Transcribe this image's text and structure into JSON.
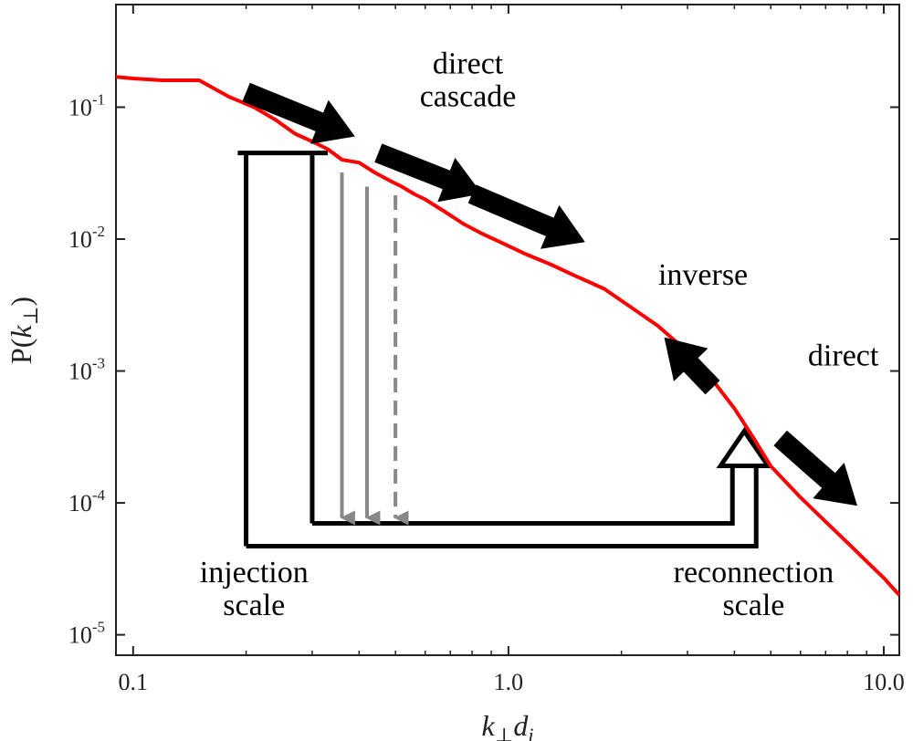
{
  "chart_data": {
    "type": "line",
    "xscale": "log",
    "yscale": "log",
    "xlim": [
      0.09,
      11
    ],
    "ylim": [
      7e-06,
      0.6
    ],
    "xticks": [
      {
        "value": 0.1,
        "label": "0.1"
      },
      {
        "value": 1.0,
        "label": "1.0"
      },
      {
        "value": 10.0,
        "label": "10.0"
      }
    ],
    "yticks": [
      {
        "value": 0.1,
        "base": "10",
        "exp": "-1"
      },
      {
        "value": 0.01,
        "base": "10",
        "exp": "-2"
      },
      {
        "value": 0.001,
        "base": "10",
        "exp": "-3"
      },
      {
        "value": 0.0001,
        "base": "10",
        "exp": "-4"
      },
      {
        "value": 1e-05,
        "base": "10",
        "exp": "-5"
      }
    ],
    "xlabel": {
      "k": "k",
      "perp": "⊥",
      "d": "d",
      "i": "i"
    },
    "ylabel": {
      "prefix": "P(",
      "k": "k",
      "perp": "⊥",
      "suffix": ")"
    },
    "series": [
      {
        "color": "#ff0000",
        "x": [
          0.09,
          0.1,
          0.12,
          0.15,
          0.18,
          0.21,
          0.24,
          0.27,
          0.3,
          0.33,
          0.36,
          0.4,
          0.44,
          0.48,
          0.52,
          0.56,
          0.6,
          0.68,
          0.76,
          0.85,
          0.95,
          1.1,
          1.3,
          1.5,
          1.8,
          2.1,
          2.5,
          3.0,
          3.5,
          4.0,
          4.5,
          5.0,
          6.0,
          7.0,
          8.0,
          9.0,
          10.0,
          11.0
        ],
        "y": [
          0.17,
          0.165,
          0.16,
          0.16,
          0.12,
          0.1,
          0.08,
          0.063,
          0.055,
          0.048,
          0.04,
          0.038,
          0.032,
          0.028,
          0.025,
          0.022,
          0.02,
          0.016,
          0.013,
          0.011,
          0.0095,
          0.0078,
          0.0064,
          0.0053,
          0.0042,
          0.0031,
          0.0022,
          0.0014,
          0.00085,
          0.00052,
          0.00031,
          0.00019,
          0.00011,
          7.2e-05,
          5e-05,
          3.6e-05,
          2.7e-05,
          2e-05
        ]
      }
    ],
    "markers": {
      "color": "#000000",
      "gray": "#888888",
      "injection_x": 0.2,
      "injection_top_y": 0.045,
      "outer_bottom_y": 4.7e-05,
      "inner_bottom_y": 7e-05,
      "inner_left_x": 0.3,
      "bracket_right_x": 0.33,
      "reconnection_x": 4.25,
      "reconnection_arrow_top_y": 0.00035,
      "gray_arrows": [
        {
          "x": 0.36,
          "top_y": 0.032,
          "style": "solid"
        },
        {
          "x": 0.42,
          "top_y": 0.025,
          "style": "solid"
        },
        {
          "x": 0.5,
          "top_y": 0.0215,
          "style": "dashed"
        }
      ],
      "cascade_arrows": [
        {
          "from": [
            0.2,
            0.13
          ],
          "to": [
            0.39,
            0.06
          ]
        },
        {
          "from": [
            0.45,
            0.045
          ],
          "to": [
            0.85,
            0.022
          ]
        },
        {
          "from": [
            0.8,
            0.022
          ],
          "to": [
            1.6,
            0.0095
          ]
        },
        {
          "from": [
            3.5,
            0.00075
          ],
          "to": [
            2.6,
            0.0018
          ]
        },
        {
          "from": [
            5.3,
            0.00031
          ],
          "to": [
            8.5,
            9.5e-05
          ]
        }
      ]
    },
    "annotations": [
      {
        "id": "direct-cascade",
        "lines": [
          "direct",
          "cascade"
        ],
        "x": 0.78,
        "y": 0.18
      },
      {
        "id": "inverse",
        "lines": [
          "inverse"
        ],
        "x": 3.3,
        "y": 0.0045
      },
      {
        "id": "direct",
        "lines": [
          "direct"
        ],
        "x": 7.8,
        "y": 0.0011
      },
      {
        "id": "injection-scale",
        "lines": [
          "injection",
          "scale"
        ],
        "x": 0.21,
        "y": 2.5e-05
      },
      {
        "id": "reconnection-scale",
        "lines": [
          "reconnection",
          "scale"
        ],
        "x": 4.5,
        "y": 2.5e-05
      }
    ]
  }
}
